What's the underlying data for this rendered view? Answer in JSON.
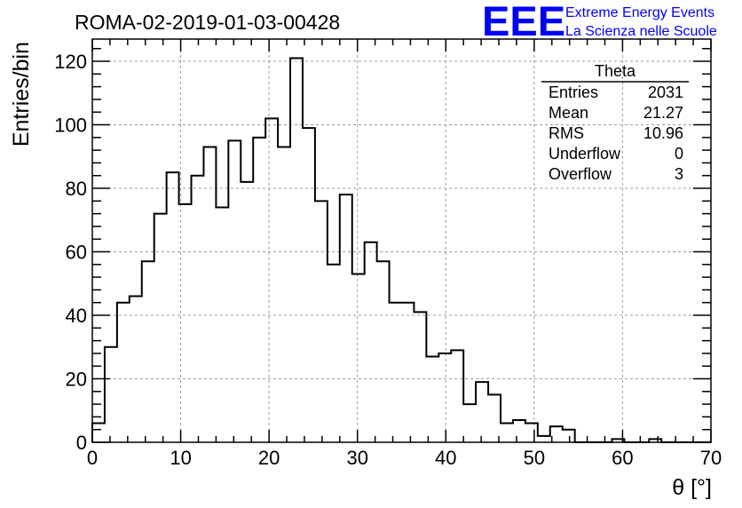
{
  "title": "ROMA-02-2019-01-03-00428",
  "logo": {
    "mark": "EEE",
    "line1": "Extreme Energy Events",
    "line2": "La Scienza nelle Scuole",
    "color": "#0000ff"
  },
  "stats": {
    "name": "Theta",
    "rows": [
      {
        "label": "Entries",
        "value": "2031"
      },
      {
        "label": "Mean",
        "value": "21.27"
      },
      {
        "label": "RMS",
        "value": "10.96"
      },
      {
        "label": "Underflow",
        "value": "0"
      },
      {
        "label": "Overflow",
        "value": "3"
      }
    ]
  },
  "chart_data": {
    "type": "bar",
    "title": "ROMA-02-2019-01-03-00428",
    "xlabel": "θ [°]",
    "ylabel": "Entries/bin",
    "xlim": [
      0,
      70
    ],
    "ylim": [
      0,
      127
    ],
    "grid": true,
    "bin_width": 1.4,
    "bin_start": 0,
    "values": [
      6,
      30,
      44,
      46,
      57,
      72,
      85,
      75,
      84,
      93,
      74,
      95,
      82,
      96,
      102,
      93,
      121,
      99,
      76,
      56,
      78,
      53,
      63,
      57,
      44,
      44,
      41,
      27,
      28,
      29,
      12,
      19,
      15,
      6,
      7,
      6,
      2,
      5,
      4,
      0,
      0,
      0,
      1,
      0,
      0,
      1,
      0,
      0,
      0,
      0
    ],
    "x_ticks": [
      "0",
      "10",
      "20",
      "30",
      "40",
      "50",
      "60",
      "70"
    ],
    "y_ticks": [
      "0",
      "20",
      "40",
      "60",
      "80",
      "100",
      "120"
    ]
  }
}
